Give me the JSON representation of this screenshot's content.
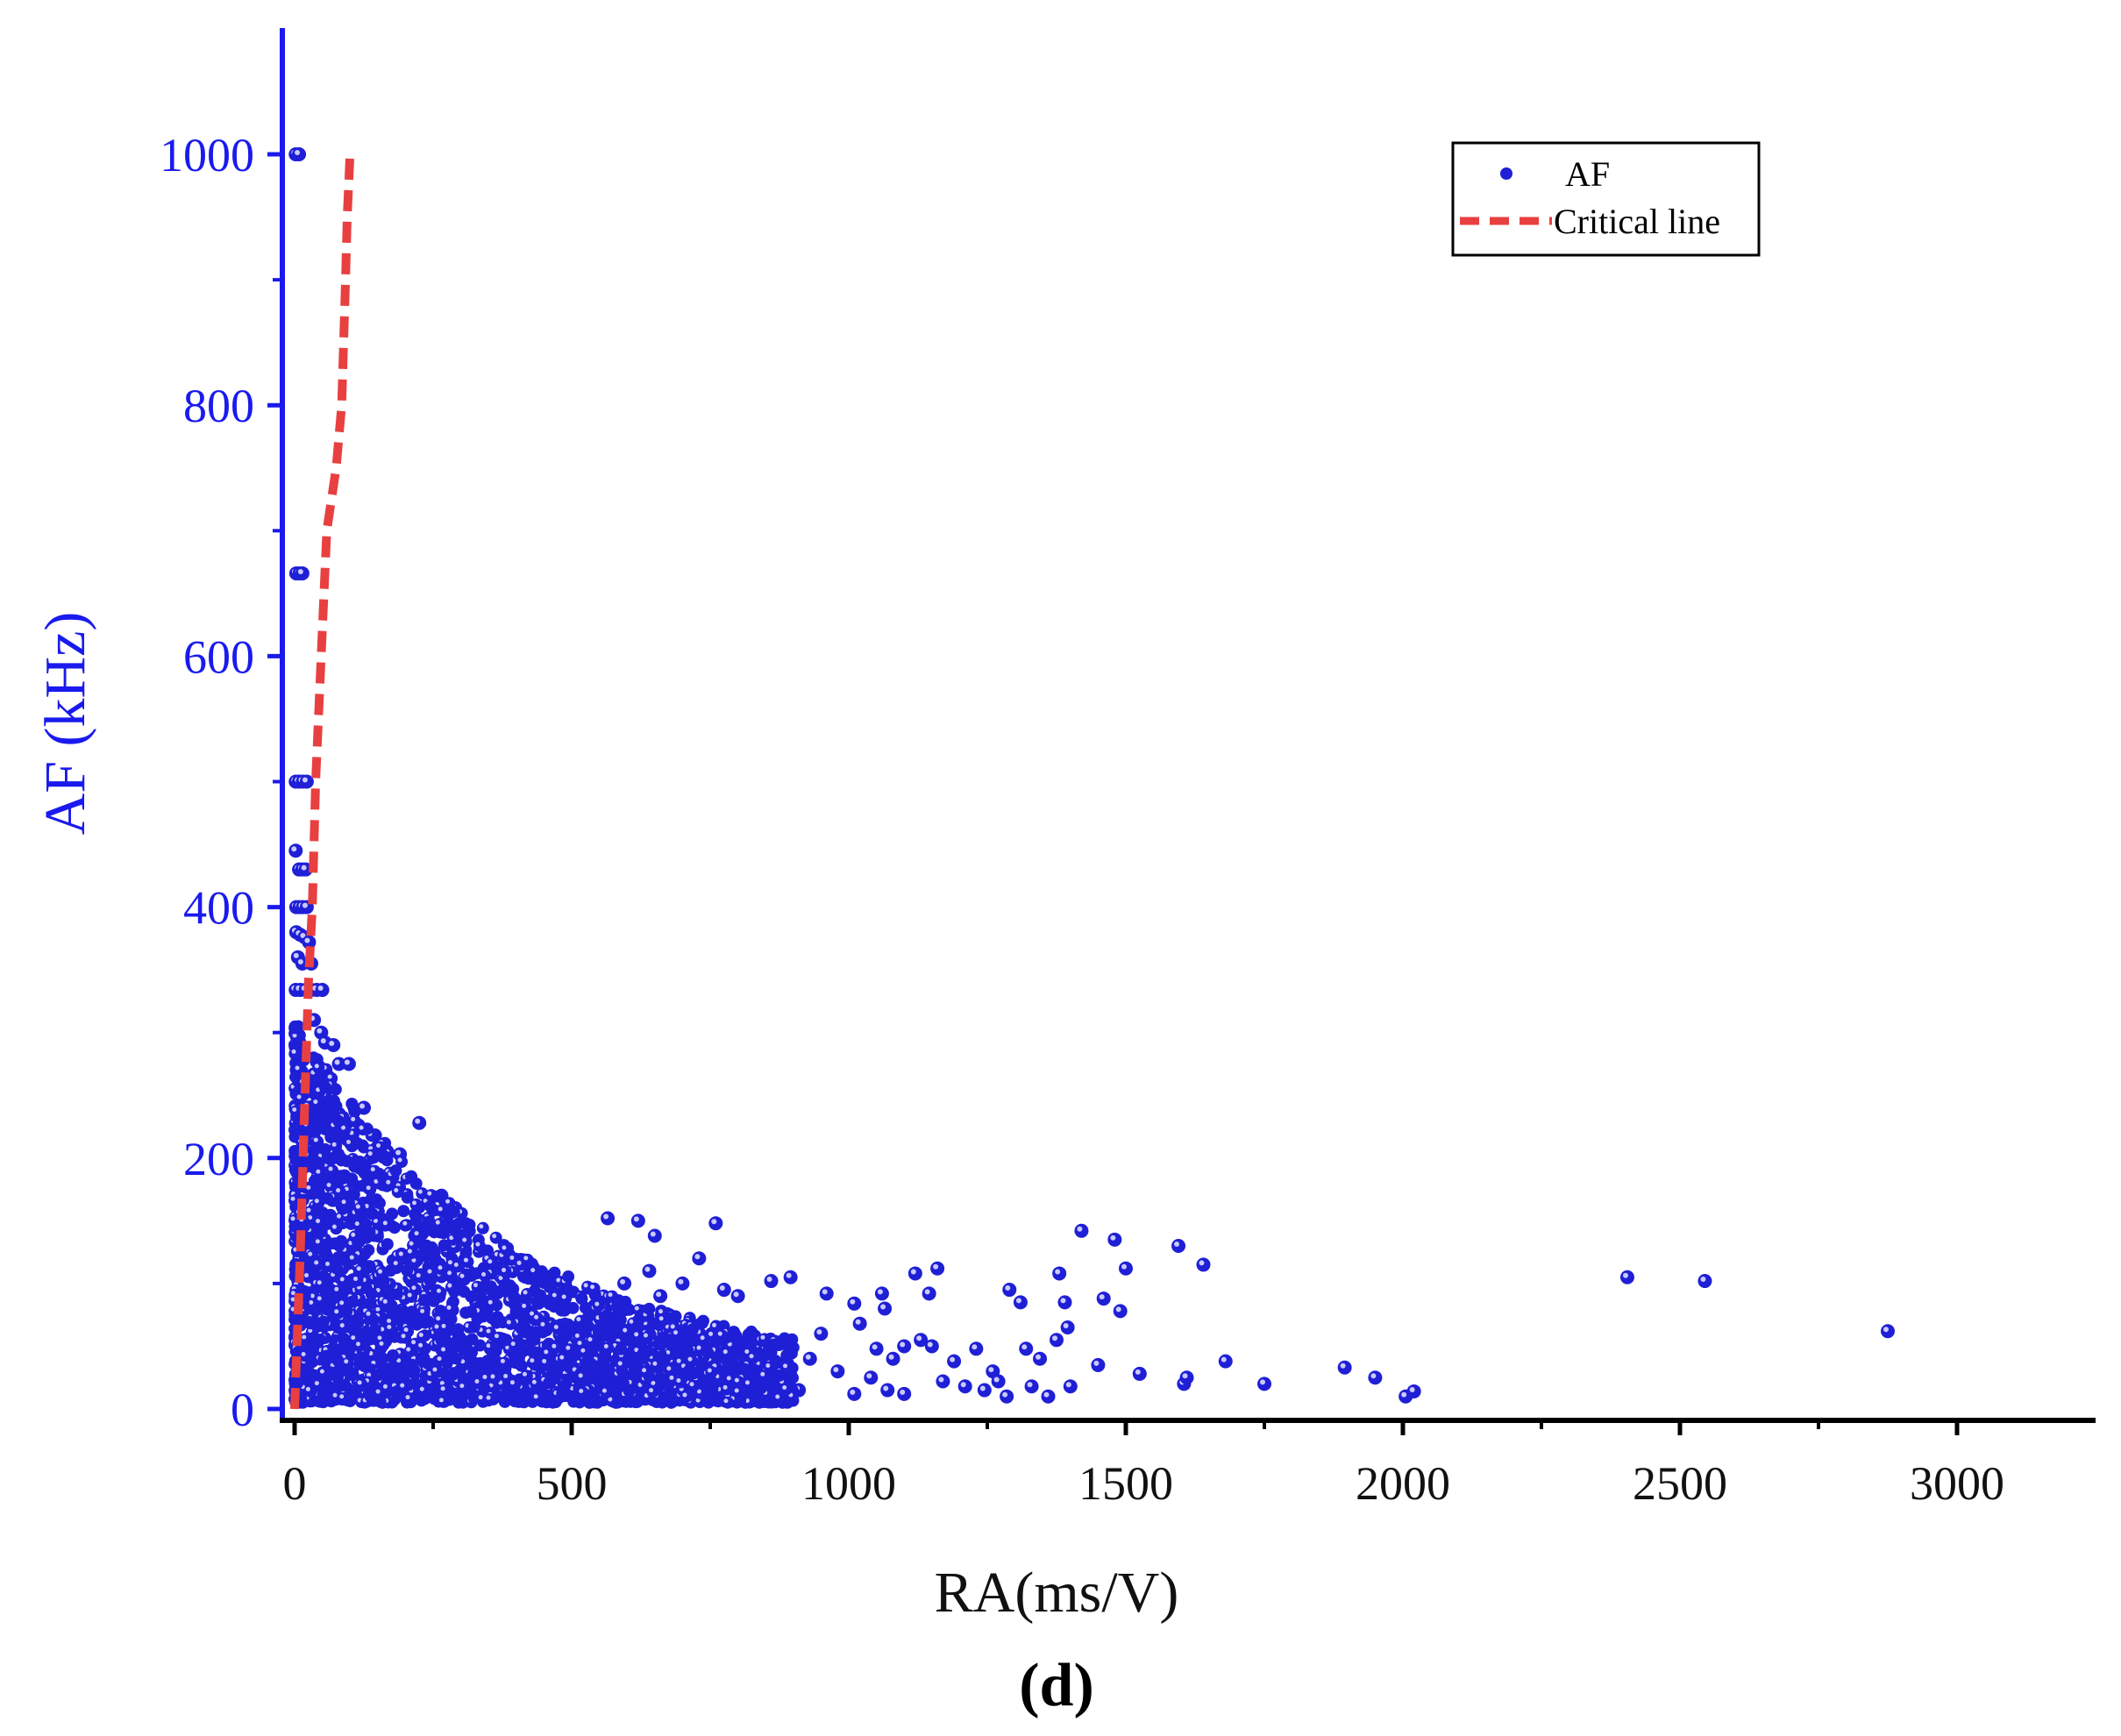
{
  "chart_data": {
    "type": "scatter",
    "xlabel": "RA(ms/V)",
    "ylabel": "AF (kHz)",
    "panel_label": "(d)",
    "x_ticks": [
      "0",
      "500",
      "1000",
      "1500",
      "2000",
      "2500",
      "3000"
    ],
    "y_ticks": [
      "0",
      "200",
      "400",
      "600",
      "800",
      "1000"
    ],
    "xlim": [
      -20,
      3250
    ],
    "ylim": [
      -20,
      1100
    ],
    "x_minor_step": 250,
    "y_minor_step": 100,
    "grid": false,
    "legend_position": "top-right",
    "colors": {
      "axis_y": "#1a1aee",
      "axis_x": "#000000",
      "points": "#1f1fd6",
      "points_highlight": "#c9c9ff",
      "critical_line": "#e84040"
    },
    "series": [
      {
        "name": "AF",
        "kind": "scatter",
        "points": [
          [
            2,
            1000
          ],
          [
            8,
            1000
          ],
          [
            3,
            666
          ],
          [
            9,
            666
          ],
          [
            14,
            666
          ],
          [
            2,
            500
          ],
          [
            8,
            500
          ],
          [
            15,
            500
          ],
          [
            22,
            500
          ],
          [
            2,
            445
          ],
          [
            8,
            430
          ],
          [
            14,
            430
          ],
          [
            20,
            430
          ],
          [
            3,
            400
          ],
          [
            9,
            400
          ],
          [
            15,
            400
          ],
          [
            22,
            400
          ],
          [
            3,
            380
          ],
          [
            10,
            378
          ],
          [
            18,
            376
          ],
          [
            26,
            372
          ],
          [
            6,
            360
          ],
          [
            14,
            355
          ],
          [
            30,
            355
          ],
          [
            2,
            334
          ],
          [
            10,
            334
          ],
          [
            20,
            334
          ],
          [
            30,
            334
          ],
          [
            40,
            334
          ],
          [
            50,
            334
          ],
          [
            35,
            310
          ],
          [
            48,
            300
          ],
          [
            55,
            292
          ],
          [
            70,
            290
          ],
          [
            80,
            275
          ],
          [
            98,
            275
          ],
          [
            60,
            265
          ],
          [
            225,
            228
          ],
          [
            190,
            203
          ],
          [
            145,
            218
          ],
          [
            125,
            240
          ],
          [
            265,
            170
          ],
          [
            290,
            160
          ],
          [
            565,
            152
          ],
          [
            620,
            150
          ],
          [
            760,
            148
          ],
          [
            650,
            138
          ],
          [
            730,
            120
          ],
          [
            640,
            110
          ],
          [
            595,
            100
          ],
          [
            700,
            100
          ],
          [
            660,
            90
          ],
          [
            775,
            95
          ],
          [
            800,
            90
          ],
          [
            860,
            102
          ],
          [
            895,
            105
          ],
          [
            960,
            92
          ],
          [
            1010,
            84
          ],
          [
            1060,
            92
          ],
          [
            1065,
            80
          ],
          [
            1020,
            68
          ],
          [
            1050,
            48
          ],
          [
            1080,
            40
          ],
          [
            1100,
            50
          ],
          [
            1120,
            108
          ],
          [
            1160,
            112
          ],
          [
            1145,
            92
          ],
          [
            1130,
            55
          ],
          [
            1150,
            50
          ],
          [
            1170,
            22
          ],
          [
            1190,
            38
          ],
          [
            1210,
            18
          ],
          [
            1230,
            48
          ],
          [
            1245,
            15
          ],
          [
            1260,
            30
          ],
          [
            1270,
            22
          ],
          [
            1285,
            10
          ],
          [
            1290,
            95
          ],
          [
            1310,
            85
          ],
          [
            1320,
            48
          ],
          [
            1330,
            18
          ],
          [
            1345,
            40
          ],
          [
            1360,
            10
          ],
          [
            1375,
            55
          ],
          [
            1380,
            108
          ],
          [
            1390,
            85
          ],
          [
            1395,
            65
          ],
          [
            1400,
            18
          ],
          [
            1420,
            142
          ],
          [
            1450,
            35
          ],
          [
            1460,
            88
          ],
          [
            1480,
            135
          ],
          [
            1490,
            78
          ],
          [
            1500,
            112
          ],
          [
            1525,
            28
          ],
          [
            1595,
            130
          ],
          [
            1605,
            20
          ],
          [
            1610,
            25
          ],
          [
            1640,
            115
          ],
          [
            1680,
            38
          ],
          [
            1750,
            20
          ],
          [
            1895,
            33
          ],
          [
            1950,
            25
          ],
          [
            2005,
            10
          ],
          [
            2020,
            14
          ],
          [
            2405,
            105
          ],
          [
            2545,
            102
          ],
          [
            2875,
            62
          ],
          [
            1100,
            12
          ],
          [
            1070,
            15
          ],
          [
            1040,
            25
          ],
          [
            1010,
            12
          ],
          [
            980,
            30
          ],
          [
            950,
            60
          ],
          [
            930,
            40
          ],
          [
            910,
            15
          ]
        ]
      },
      {
        "name": "Critical line",
        "kind": "line",
        "style": "dashed",
        "points": [
          [
            0,
            0
          ],
          [
            10,
            120
          ],
          [
            18,
            240
          ],
          [
            25,
            340
          ],
          [
            32,
            400
          ],
          [
            38,
            500
          ],
          [
            48,
            600
          ],
          [
            58,
            700
          ],
          [
            75,
            750
          ],
          [
            85,
            800
          ],
          [
            92,
            900
          ],
          [
            95,
            950
          ],
          [
            100,
            1000
          ]
        ]
      }
    ]
  }
}
